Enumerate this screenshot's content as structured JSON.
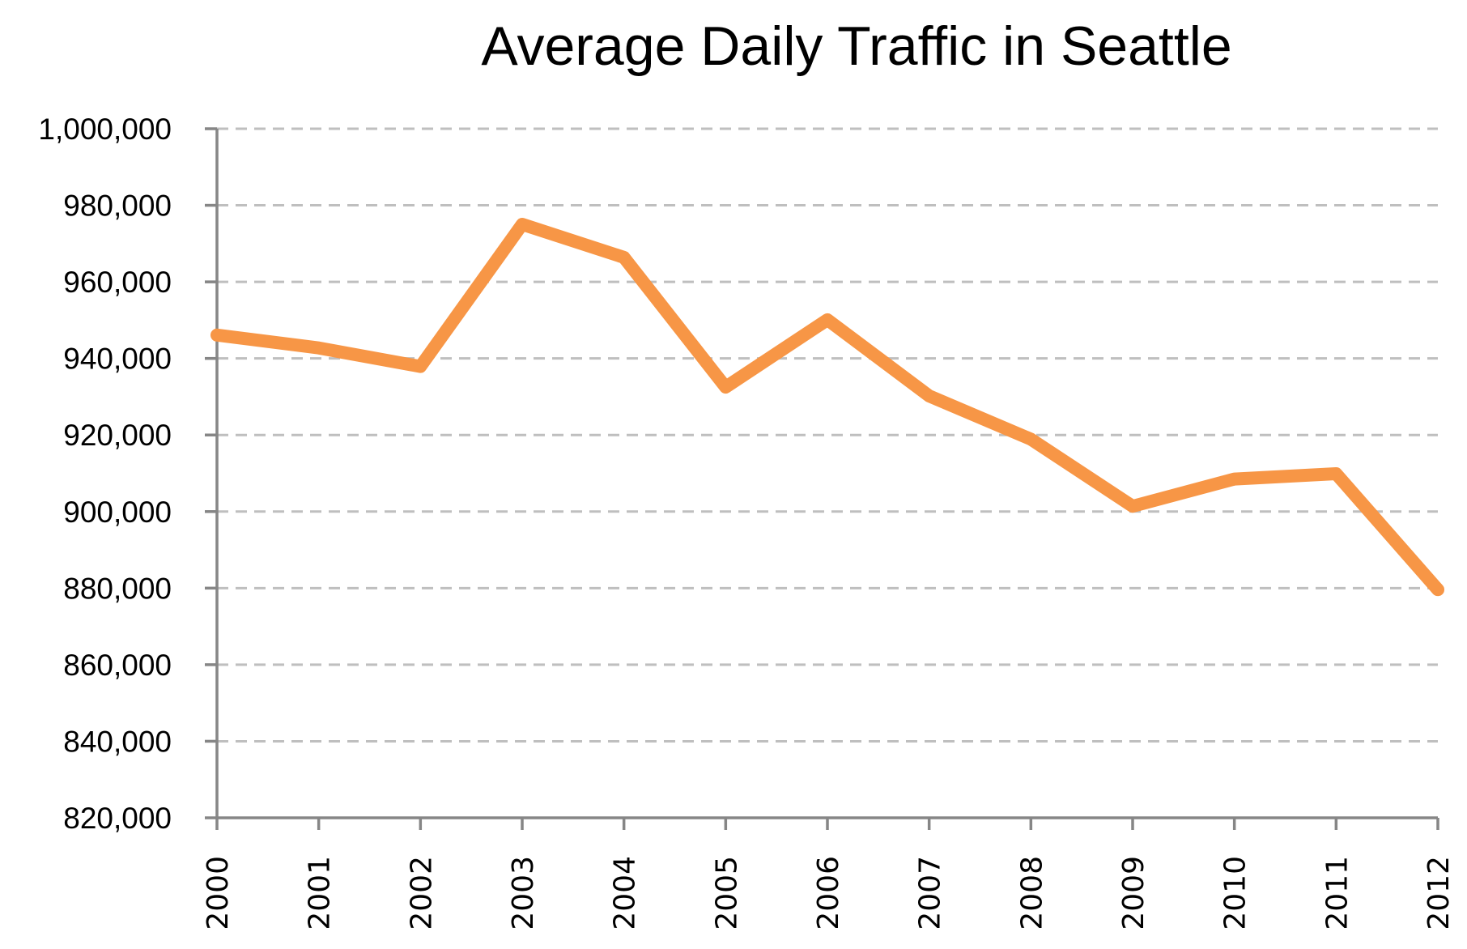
{
  "chart_data": {
    "type": "line",
    "title": "Average Daily Traffic in Seattle",
    "xlabel": "",
    "ylabel": "",
    "categories": [
      "2000",
      "2001",
      "2002",
      "2003",
      "2004",
      "2005",
      "2006",
      "2007",
      "2008",
      "2009",
      "2010",
      "2011",
      "2012"
    ],
    "series": [
      {
        "name": "Average Daily Traffic",
        "color": "#F79646",
        "values": [
          946100,
          942750,
          937900,
          975050,
          966400,
          932500,
          950100,
          930200,
          918900,
          901400,
          908500,
          909900,
          879600
        ]
      }
    ],
    "ylim": [
      820000,
      1000000
    ],
    "yticks": [
      820000,
      840000,
      860000,
      880000,
      900000,
      920000,
      940000,
      960000,
      980000,
      1000000
    ],
    "ytick_labels": [
      "820,000",
      "840,000",
      "860,000",
      "880,000",
      "900,000",
      "920,000",
      "940,000",
      "960,000",
      "980,000",
      "1,000,000"
    ],
    "grid": "horizontal-dashed",
    "legend": "none",
    "x_label_rotation": "vertical"
  }
}
